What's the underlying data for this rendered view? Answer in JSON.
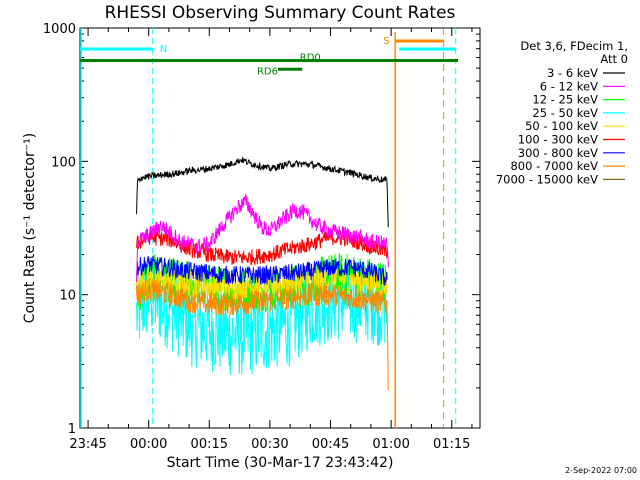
{
  "chart_data": {
    "type": "line",
    "title": "RHESSI Observing Summary Count Rates",
    "xlabel": "Start Time (30-Mar-17 23:43:42)",
    "ylabel": "Count Rate (s⁻¹ detector⁻¹)",
    "yscale": "log",
    "ylim": [
      1,
      1000
    ],
    "xlim_minutes": [
      -17,
      82
    ],
    "x_unit": "minutes after 00:00 (31-Mar-17)",
    "x_ticks": [
      {
        "t": -15,
        "label": "23:45"
      },
      {
        "t": 0,
        "label": "00:00"
      },
      {
        "t": 15,
        "label": "00:15"
      },
      {
        "t": 30,
        "label": "00:30"
      },
      {
        "t": 45,
        "label": "00:45"
      },
      {
        "t": 60,
        "label": "01:00"
      },
      {
        "t": 75,
        "label": "01:15"
      }
    ],
    "y_ticks": [
      {
        "v": 1,
        "label": "1"
      },
      {
        "v": 10,
        "label": "10"
      },
      {
        "v": 100,
        "label": "100"
      },
      {
        "v": 1000,
        "label": "1000"
      }
    ],
    "legend_header": [
      "Det 3,6, FDecim 1,",
      "Att 0"
    ],
    "series": [
      {
        "name": "3 - 6 keV",
        "color": "#000000",
        "noise": 0.025,
        "points": [
          [
            -3,
            40
          ],
          [
            -2.8,
            70
          ],
          [
            -2,
            75
          ],
          [
            0,
            77
          ],
          [
            5,
            80
          ],
          [
            8,
            82
          ],
          [
            10,
            85
          ],
          [
            15,
            88
          ],
          [
            20,
            95
          ],
          [
            23,
            103
          ],
          [
            25,
            97
          ],
          [
            30,
            88
          ],
          [
            35,
            96
          ],
          [
            40,
            95
          ],
          [
            45,
            88
          ],
          [
            50,
            82
          ],
          [
            55,
            75
          ],
          [
            59,
            72
          ],
          [
            59.3,
            32
          ]
        ]
      },
      {
        "name": "6 - 12 keV",
        "color": "#ff00ff",
        "noise": 0.06,
        "points": [
          [
            -3,
            13
          ],
          [
            -2.8,
            25
          ],
          [
            0,
            28
          ],
          [
            3,
            33
          ],
          [
            5,
            30
          ],
          [
            8,
            25
          ],
          [
            12,
            23
          ],
          [
            15,
            24
          ],
          [
            18,
            32
          ],
          [
            22,
            45
          ],
          [
            24,
            50
          ],
          [
            26,
            40
          ],
          [
            28,
            32
          ],
          [
            30,
            30
          ],
          [
            32,
            34
          ],
          [
            36,
            43
          ],
          [
            38,
            42
          ],
          [
            40,
            37
          ],
          [
            42,
            33
          ],
          [
            45,
            30
          ],
          [
            50,
            28
          ],
          [
            55,
            25
          ],
          [
            59,
            24
          ],
          [
            59.3,
            16
          ]
        ]
      },
      {
        "name": "12 - 25 keV",
        "color": "#00ff00",
        "noise": 0.17,
        "points": [
          [
            -3,
            10
          ],
          [
            0,
            14
          ],
          [
            10,
            12
          ],
          [
            20,
            11
          ],
          [
            30,
            11
          ],
          [
            40,
            12
          ],
          [
            45,
            14
          ],
          [
            50,
            14
          ],
          [
            55,
            13
          ],
          [
            59,
            12
          ]
        ]
      },
      {
        "name": "25 - 50 keV",
        "color": "#00ffff",
        "noise": 0.32,
        "points": [
          [
            -3,
            7
          ],
          [
            0,
            10
          ],
          [
            5,
            8
          ],
          [
            10,
            6
          ],
          [
            15,
            5.5
          ],
          [
            20,
            5
          ],
          [
            25,
            5
          ],
          [
            30,
            5.5
          ],
          [
            35,
            6
          ],
          [
            40,
            8
          ],
          [
            45,
            9
          ],
          [
            50,
            9
          ],
          [
            55,
            9
          ],
          [
            59,
            8
          ]
        ]
      },
      {
        "name": "50 - 100 keV",
        "color": "#ffdd00",
        "noise": 0.1,
        "points": [
          [
            -3,
            12
          ],
          [
            0,
            13
          ],
          [
            10,
            12
          ],
          [
            20,
            11.5
          ],
          [
            30,
            12
          ],
          [
            40,
            13
          ],
          [
            50,
            13
          ],
          [
            59,
            12
          ]
        ]
      },
      {
        "name": "100 - 300 keV",
        "color": "#ff0000",
        "noise": 0.06,
        "points": [
          [
            -3,
            24
          ],
          [
            0,
            27
          ],
          [
            5,
            26
          ],
          [
            10,
            22
          ],
          [
            15,
            20
          ],
          [
            20,
            19
          ],
          [
            25,
            19
          ],
          [
            30,
            20
          ],
          [
            35,
            22
          ],
          [
            40,
            24
          ],
          [
            45,
            27
          ],
          [
            50,
            26
          ],
          [
            55,
            23
          ],
          [
            59,
            21
          ]
        ]
      },
      {
        "name": "300 - 800 keV",
        "color": "#0000ff",
        "noise": 0.07,
        "points": [
          [
            -3,
            16
          ],
          [
            0,
            17
          ],
          [
            10,
            15
          ],
          [
            20,
            14
          ],
          [
            30,
            14
          ],
          [
            40,
            15
          ],
          [
            45,
            16
          ],
          [
            50,
            16
          ],
          [
            55,
            15
          ],
          [
            59,
            13
          ]
        ]
      },
      {
        "name": "800 - 7000 keV",
        "color": "#ff8800",
        "noise": 0.09,
        "points": [
          [
            -3,
            10
          ],
          [
            0,
            11
          ],
          [
            5,
            10
          ],
          [
            10,
            9
          ],
          [
            15,
            8.5
          ],
          [
            20,
            8.5
          ],
          [
            25,
            8.8
          ],
          [
            30,
            9
          ],
          [
            35,
            9.5
          ],
          [
            40,
            10
          ],
          [
            45,
            10
          ],
          [
            50,
            9.5
          ],
          [
            55,
            9
          ],
          [
            59,
            8.5
          ],
          [
            59.3,
            2
          ]
        ]
      },
      {
        "name": "7000 - 15000 keV",
        "color": "#8b6914",
        "noise": 0.0,
        "points": []
      }
    ],
    "annotations": {
      "night": {
        "label": "N",
        "color": "#00ffff",
        "bars": [
          [
            -17,
            1
          ],
          [
            62,
            76
          ]
        ],
        "markers": [
          1,
          76
        ]
      },
      "saa": {
        "label": "S",
        "color": "#ff8800",
        "bars": [
          [
            61,
            73
          ]
        ],
        "markers": [
          61,
          73
        ]
      },
      "decim": {
        "color": "#008000",
        "level_high": 570,
        "bar_high": [
          -17,
          82
        ],
        "labels": [
          {
            "label": "RD0",
            "t": 40,
            "v": 600
          },
          {
            "label": "RD6",
            "t": 32,
            "v": 470
          }
        ],
        "bar_low": [
          32,
          38
        ],
        "level_low": 490
      }
    }
  },
  "footer_stamp": "2-Sep-2022 07:00"
}
